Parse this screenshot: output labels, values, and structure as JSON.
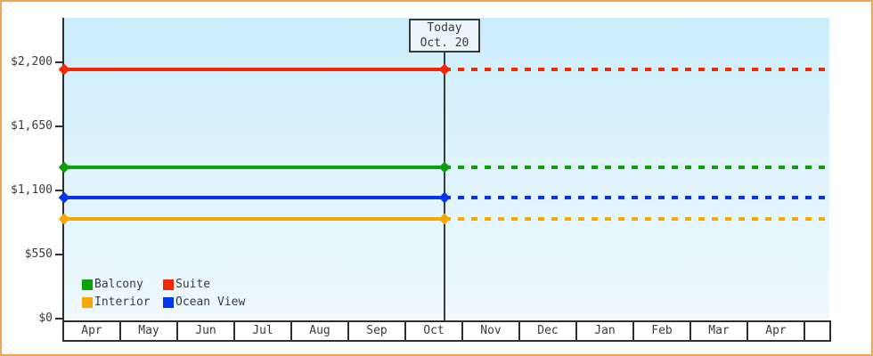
{
  "chart_data": {
    "type": "line",
    "title": "",
    "xlabel": "",
    "ylabel": "",
    "ylim": [
      0,
      2200
    ],
    "grid": false,
    "legend_position": "bottom-left",
    "x_categories": [
      "Apr",
      "May",
      "Jun",
      "Jul",
      "Aug",
      "Sep",
      "Oct",
      "Nov",
      "Dec",
      "Jan",
      "Feb",
      "Mar",
      "Apr"
    ],
    "y_ticks": [
      {
        "label": "$0",
        "value": 0
      },
      {
        "label": "$550",
        "value": 550
      },
      {
        "label": "$1,100",
        "value": 1100
      },
      {
        "label": "$1,650",
        "value": 1650
      },
      {
        "label": "$2,200",
        "value": 2200
      }
    ],
    "today": {
      "label_line1": "Today",
      "label_line2": "Oct. 20",
      "month_index": 6,
      "month_fraction": 0.67
    },
    "note": "flat price lines; solid before today, dotted projection after today",
    "series": [
      {
        "name": "Balcony",
        "color": "#0aa00a",
        "value": 1295
      },
      {
        "name": "Suite",
        "color": "#f32800",
        "value": 2140
      },
      {
        "name": "Interior",
        "color": "#f5a800",
        "value": 855
      },
      {
        "name": "Ocean View",
        "color": "#0536ee",
        "value": 1040
      }
    ]
  },
  "colors": {
    "frame_border": "#eda55b",
    "plot_top": "#cbedfb",
    "plot_bottom": "#eef9fe",
    "axis": "#2e2e2e",
    "text": "#3a3a3a",
    "today_box_bg": "#ecf5fb"
  }
}
